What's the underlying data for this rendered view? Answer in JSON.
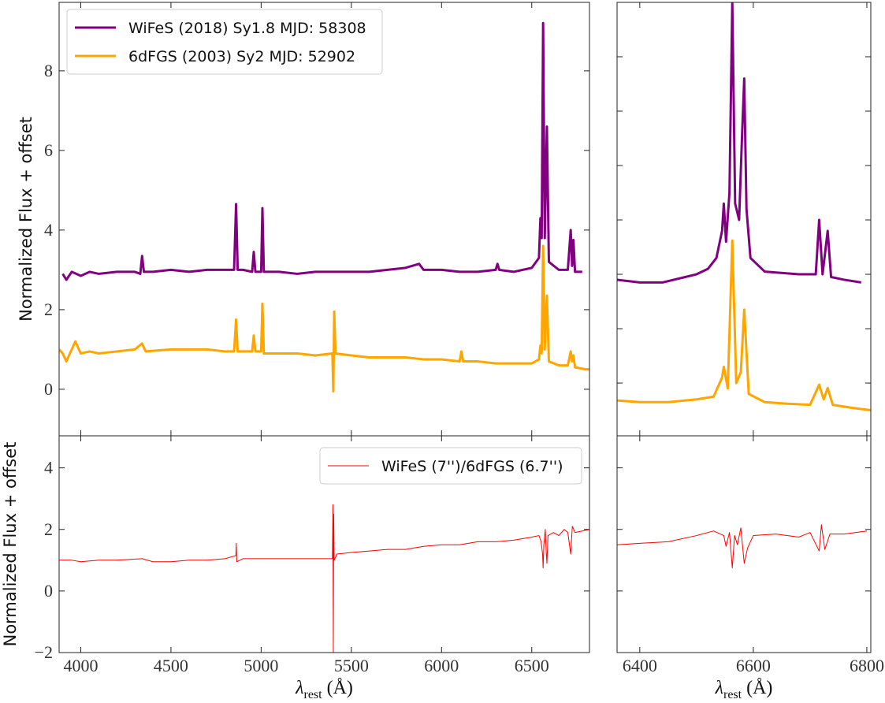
{
  "chart_data": [
    {
      "type": "line",
      "ylabel": "Normalized Flux + offset",
      "legend": "upper left",
      "show_xtick_labels": false,
      "show_ytick_labels": true,
      "line_width": 3,
      "xlim": [
        3880,
        6820
      ],
      "xticks": [
        4000,
        4500,
        5000,
        5500,
        6000,
        6500
      ],
      "ylim": [
        -1.17,
        9.72
      ],
      "yticks": [
        0,
        2,
        4,
        6,
        8
      ],
      "series": [
        {
          "name": "WiFeS (2018) Sy1.8 MJD: 58308",
          "color": "#800080",
          "x": [
            3900,
            3920,
            3950,
            4000,
            4050,
            4100,
            4200,
            4300,
            4330,
            4340,
            4350,
            4400,
            4500,
            4600,
            4700,
            4800,
            4850,
            4861,
            4870,
            4900,
            4950,
            4959,
            4968,
            5000,
            5007,
            5015,
            5100,
            5200,
            5300,
            5400,
            5500,
            5600,
            5700,
            5800,
            5876,
            5900,
            6000,
            6100,
            6200,
            6300,
            6310,
            6320,
            6400,
            6500,
            6540,
            6548,
            6555,
            6563,
            6572,
            6584,
            6595,
            6650,
            6700,
            6716,
            6724,
            6731,
            6740,
            6780
          ],
          "values": [
            2.9,
            2.75,
            2.95,
            2.85,
            2.95,
            2.9,
            2.95,
            2.95,
            2.9,
            3.35,
            2.95,
            2.95,
            3.0,
            2.95,
            3.0,
            3.0,
            3.0,
            4.65,
            3.0,
            3.0,
            2.95,
            3.45,
            2.95,
            2.95,
            4.55,
            2.95,
            2.95,
            2.9,
            2.95,
            2.95,
            2.95,
            2.95,
            3.0,
            3.05,
            3.15,
            3.0,
            3.0,
            2.95,
            2.95,
            3.0,
            3.15,
            3.0,
            2.95,
            3.05,
            3.3,
            4.3,
            3.8,
            9.2,
            3.8,
            6.6,
            3.2,
            3.0,
            3.0,
            4.0,
            3.1,
            3.75,
            2.95,
            2.95
          ]
        },
        {
          "name": "6dFGS (2003) Sy2 MJD: 52902",
          "color": "#ffa500",
          "x": [
            3880,
            3900,
            3920,
            3950,
            3970,
            4000,
            4050,
            4100,
            4200,
            4300,
            4340,
            4360,
            4500,
            4600,
            4700,
            4800,
            4850,
            4861,
            4870,
            4950,
            4959,
            4968,
            5000,
            5007,
            5015,
            5100,
            5200,
            5300,
            5395,
            5400,
            5405,
            5412,
            5500,
            5600,
            5700,
            5800,
            5900,
            6000,
            6100,
            6110,
            6120,
            6200,
            6300,
            6400,
            6500,
            6540,
            6548,
            6555,
            6563,
            6572,
            6584,
            6595,
            6650,
            6700,
            6716,
            6724,
            6731,
            6740,
            6800,
            6820
          ],
          "values": [
            1.0,
            0.9,
            0.7,
            1.0,
            1.2,
            0.9,
            0.95,
            0.9,
            0.95,
            1.0,
            1.15,
            0.95,
            1.0,
            1.0,
            1.0,
            0.95,
            0.95,
            1.75,
            0.95,
            0.95,
            1.35,
            0.95,
            0.95,
            2.15,
            0.9,
            0.9,
            0.9,
            0.85,
            0.9,
            -0.05,
            1.95,
            0.9,
            0.85,
            0.8,
            0.8,
            0.8,
            0.75,
            0.75,
            0.7,
            0.95,
            0.7,
            0.7,
            0.65,
            0.65,
            0.65,
            0.75,
            1.1,
            0.9,
            3.6,
            1.0,
            2.35,
            0.7,
            0.6,
            0.6,
            0.95,
            0.7,
            0.85,
            0.55,
            0.5,
            0.5
          ]
        }
      ]
    },
    {
      "type": "line",
      "ylabel": "Normalized Flux + offset",
      "xlabel": {
        "symbol": "λ",
        "subscript": "rest",
        "unit": "(Å)"
      },
      "legend": "upper right",
      "show_xtick_labels": true,
      "show_ytick_labels": true,
      "line_width": 1,
      "xlim": [
        3880,
        6820
      ],
      "xticks": [
        4000,
        4500,
        5000,
        5500,
        6000,
        6500
      ],
      "ylim": [
        -2,
        5.04
      ],
      "yticks": [
        -2,
        0,
        2,
        4
      ],
      "series": [
        {
          "name": "WiFeS (7'')/6dFGS (6.7'')",
          "color": "#ff0000",
          "x": [
            3880,
            3950,
            4000,
            4100,
            4200,
            4340,
            4400,
            4500,
            4600,
            4700,
            4800,
            4860,
            4862,
            4865,
            4900,
            5000,
            5100,
            5200,
            5300,
            5395,
            5398,
            5400,
            5402,
            5405,
            5420,
            5500,
            5600,
            5700,
            5800,
            5900,
            6000,
            6100,
            6200,
            6300,
            6400,
            6500,
            6540,
            6552,
            6560,
            6563,
            6567,
            6575,
            6580,
            6584,
            6590,
            6620,
            6650,
            6680,
            6700,
            6716,
            6725,
            6740,
            6780,
            6820
          ],
          "values": [
            1.0,
            1.0,
            0.95,
            1.0,
            1.0,
            1.05,
            0.95,
            0.95,
            1.0,
            1.0,
            1.05,
            1.15,
            1.55,
            0.95,
            1.05,
            1.05,
            1.05,
            1.05,
            1.05,
            1.05,
            2.8,
            -2.0,
            2.5,
            1.0,
            1.2,
            1.25,
            1.3,
            1.35,
            1.35,
            1.45,
            1.5,
            1.5,
            1.6,
            1.6,
            1.65,
            1.75,
            1.8,
            1.6,
            1.2,
            0.75,
            1.5,
            2.0,
            1.3,
            0.9,
            1.8,
            1.9,
            1.8,
            2.0,
            1.9,
            1.2,
            2.1,
            1.9,
            1.95,
            2.0
          ]
        }
      ]
    },
    {
      "type": "line",
      "show_xtick_labels": false,
      "show_ytick_labels": false,
      "line_width": 3,
      "xlim": [
        6360,
        6807
      ],
      "xticks": [
        6400,
        6600,
        6800
      ],
      "ylim": [
        0.03,
        8.0
      ],
      "yticks": [
        1,
        2,
        3,
        4,
        5,
        6,
        7
      ],
      "series": [
        {
          "color": "#800080",
          "x": [
            6360,
            6400,
            6440,
            6480,
            6500,
            6520,
            6535,
            6545,
            6548,
            6552,
            6558,
            6563,
            6568,
            6575,
            6580,
            6584,
            6588,
            6595,
            6620,
            6680,
            6710,
            6716,
            6722,
            6731,
            6737,
            6760,
            6790
          ],
          "values": [
            2.9,
            2.85,
            2.85,
            2.95,
            3.0,
            3.1,
            3.3,
            3.8,
            4.3,
            3.6,
            4.5,
            8.0,
            4.3,
            4.0,
            5.5,
            6.6,
            4.2,
            3.3,
            3.05,
            3.0,
            3.0,
            4.0,
            3.0,
            3.8,
            2.95,
            2.9,
            2.85
          ]
        },
        {
          "color": "#ffa500",
          "x": [
            6360,
            6400,
            6450,
            6500,
            6530,
            6545,
            6548,
            6555,
            6563,
            6570,
            6578,
            6584,
            6592,
            6620,
            6660,
            6700,
            6716,
            6724,
            6731,
            6740,
            6770,
            6807
          ],
          "values": [
            0.68,
            0.65,
            0.65,
            0.7,
            0.75,
            1.1,
            1.3,
            0.9,
            3.62,
            1.0,
            1.2,
            2.35,
            0.8,
            0.65,
            0.62,
            0.6,
            0.97,
            0.7,
            0.91,
            0.6,
            0.55,
            0.5
          ]
        }
      ]
    },
    {
      "type": "line",
      "xlabel": {
        "symbol": "λ",
        "subscript": "rest",
        "unit": "(Å)"
      },
      "show_xtick_labels": true,
      "show_ytick_labels": false,
      "line_width": 1,
      "xlim": [
        6360,
        6807
      ],
      "xticks": [
        6400,
        6600,
        6800
      ],
      "ylim": [
        -2,
        5.04
      ],
      "yticks": [
        -2,
        0,
        2,
        4
      ],
      "series": [
        {
          "color": "#ff0000",
          "x": [
            6360,
            6400,
            6450,
            6500,
            6530,
            6548,
            6552,
            6558,
            6563,
            6567,
            6572,
            6578,
            6584,
            6590,
            6600,
            6640,
            6680,
            6700,
            6716,
            6720,
            6726,
            6735,
            6760,
            6800
          ],
          "values": [
            1.5,
            1.55,
            1.6,
            1.8,
            1.95,
            1.8,
            1.45,
            1.9,
            0.75,
            1.8,
            1.5,
            2.05,
            0.9,
            1.4,
            1.8,
            1.85,
            1.75,
            1.9,
            1.3,
            2.15,
            1.35,
            1.85,
            1.85,
            1.95
          ]
        }
      ]
    }
  ]
}
